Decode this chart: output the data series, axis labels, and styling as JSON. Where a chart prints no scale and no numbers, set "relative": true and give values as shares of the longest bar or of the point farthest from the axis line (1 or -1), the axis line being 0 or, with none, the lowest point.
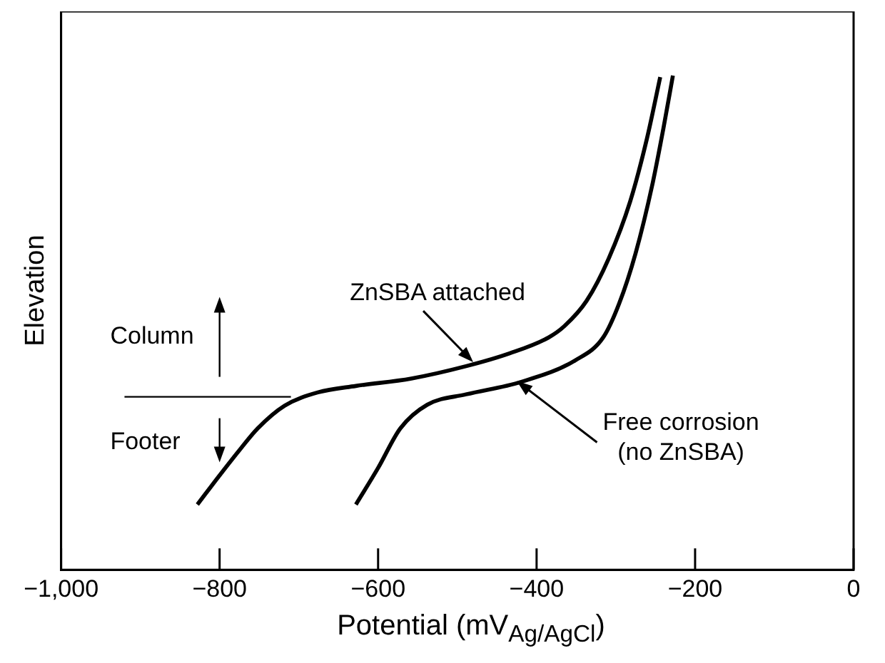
{
  "chart_data": {
    "type": "line",
    "xlabel": "Potential (mV$_{Ag/AgCl}$)",
    "ylabel": "Elevation",
    "relative": true,
    "xlim": [
      -1000,
      0
    ],
    "xticks": [
      {
        "value": -1000,
        "label": "−1,000"
      },
      {
        "value": -800,
        "label": "−800"
      },
      {
        "value": -600,
        "label": "−600"
      },
      {
        "value": -400,
        "label": "−400"
      },
      {
        "value": -200,
        "label": "−200"
      },
      0
    ],
    "grid": false,
    "legend": false,
    "marker": "none",
    "line_style": "solid",
    "series": [
      {
        "color": "#000000",
        "x": [
          -828,
          -801,
          -773,
          -752,
          -718,
          -676,
          -628,
          -558,
          -489,
          -434,
          -385,
          -365,
          -337,
          -309,
          -282,
          -261,
          -244
        ],
        "values": [
          0.132,
          0.189,
          0.246,
          0.286,
          0.332,
          0.359,
          0.372,
          0.387,
          0.412,
          0.438,
          0.47,
          0.493,
          0.544,
          0.63,
          0.745,
          0.871,
          0.997
        ]
      },
      {
        "color": "#000000",
        "x": [
          -628,
          -600,
          -572,
          -538,
          -489,
          -420,
          -351,
          -316,
          -296,
          -275,
          -254,
          -240,
          -228
        ],
        "values": [
          0.132,
          0.206,
          0.286,
          0.334,
          0.355,
          0.38,
          0.424,
          0.47,
          0.538,
          0.641,
          0.779,
          0.893,
          1.0
        ]
      }
    ],
    "annotations": [
      {
        "text": "ZnSBA attached",
        "x": -480,
        "y": 0.42
      },
      {
        "text": "Free corrosion\n(no ZnSBA)",
        "x": -425,
        "y": 0.382
      },
      "Column",
      "Footer"
    ]
  }
}
